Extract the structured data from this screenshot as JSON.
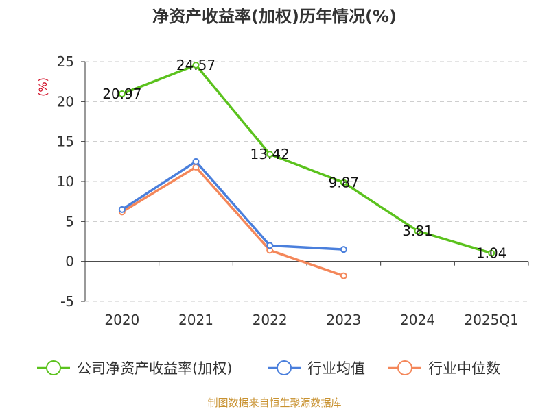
{
  "chart_data": {
    "type": "line",
    "title": "净资产收益率(加权)历年情况(%)",
    "ylabel": "(%)",
    "categories": [
      "2020",
      "2021",
      "2022",
      "2023",
      "2024",
      "2025Q1"
    ],
    "ylim": [
      -5,
      25
    ],
    "yticks": [
      -5,
      0,
      5,
      10,
      15,
      20,
      25
    ],
    "grid": true,
    "legend_position": "bottom",
    "series": [
      {
        "name": "公司净资产收益率(加权)",
        "color": "#5bc21d",
        "values": [
          20.97,
          24.57,
          13.42,
          9.87,
          3.81,
          1.04
        ],
        "labels": [
          "20.97",
          "24.57",
          "13.42",
          "9.87",
          "3.81",
          "1.04"
        ],
        "show_labels": true
      },
      {
        "name": "行业均值",
        "color": "#4a7fdc",
        "values": [
          6.5,
          12.5,
          2.0,
          1.5,
          null,
          null
        ],
        "show_labels": false
      },
      {
        "name": "行业中位数",
        "color": "#f4875a",
        "values": [
          6.2,
          11.8,
          1.4,
          -1.8,
          null,
          null
        ],
        "show_labels": false
      }
    ],
    "source": "制图数据来自恒生聚源数据库"
  }
}
